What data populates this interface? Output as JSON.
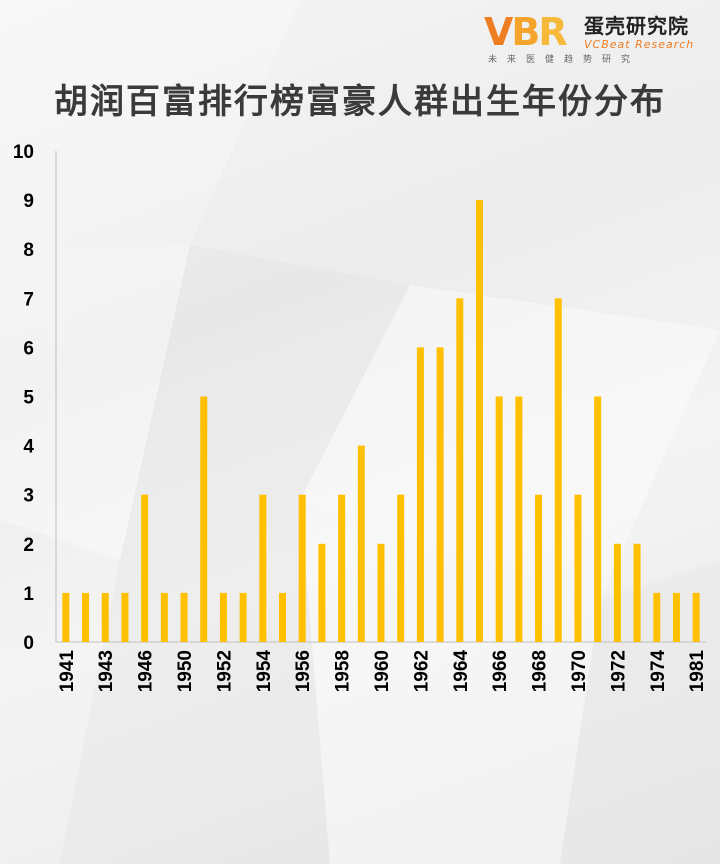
{
  "logo": {
    "mark_v": "V",
    "mark_b": "B",
    "mark_r": "R",
    "name_cn": "蛋壳研究院",
    "name_en": "VCBeat Research",
    "slogan": "未来医健趋势研究"
  },
  "title": "胡润百富排行榜富豪人群出生年份分布",
  "colors": {
    "bar": "#FFC000",
    "axis": "#bfbfbf",
    "text": "#000000"
  },
  "chart_data": {
    "type": "bar",
    "title": "胡润百富排行榜富豪人群出生年份分布",
    "categories": [
      "1941",
      "1942",
      "1943",
      "1944",
      "1946",
      "1948",
      "1950",
      "1951",
      "1952",
      "1953",
      "1954",
      "1955",
      "1956",
      "1957",
      "1958",
      "1959",
      "1960",
      "1961",
      "1962",
      "1963",
      "1964",
      "1965",
      "1966",
      "1967",
      "1968",
      "1969",
      "1970",
      "1971",
      "1972",
      "1973",
      "1974",
      "1975",
      "1981"
    ],
    "tick_labels": [
      "1941",
      "1943",
      "1946",
      "1950",
      "1952",
      "1954",
      "1956",
      "1958",
      "1960",
      "1962",
      "1964",
      "1966",
      "1968",
      "1970",
      "1972",
      "1974",
      "1981"
    ],
    "values": [
      1,
      1,
      1,
      1,
      3,
      1,
      1,
      5,
      1,
      1,
      3,
      1,
      3,
      2,
      3,
      4,
      2,
      3,
      6,
      6,
      7,
      9,
      5,
      5,
      3,
      7,
      3,
      5,
      2,
      2,
      1,
      1,
      1
    ],
    "ylim": [
      0,
      10
    ],
    "yticks": [
      0,
      1,
      2,
      3,
      4,
      5,
      6,
      7,
      8,
      9,
      10
    ],
    "xlabel": "",
    "ylabel": "",
    "grid": false,
    "legend": "none"
  }
}
